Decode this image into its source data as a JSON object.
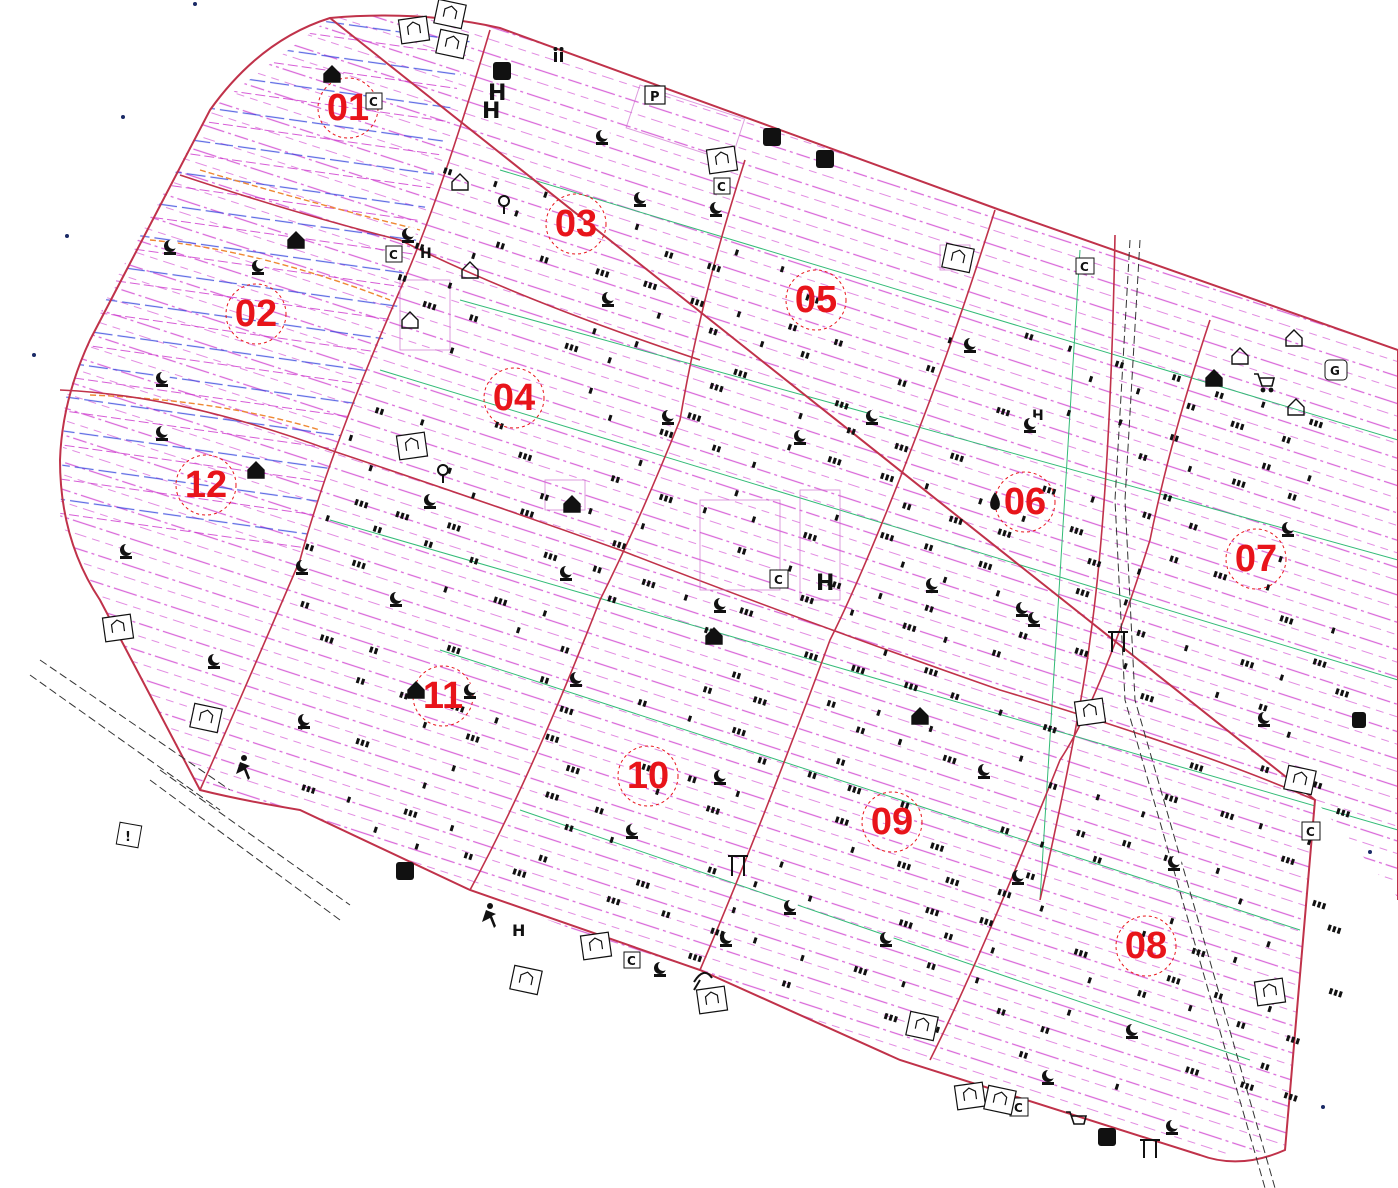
{
  "map": {
    "zones": [
      {
        "id": "01",
        "label": "01"
      },
      {
        "id": "02",
        "label": "02"
      },
      {
        "id": "03",
        "label": "03"
      },
      {
        "id": "04",
        "label": "04"
      },
      {
        "id": "05",
        "label": "05"
      },
      {
        "id": "06",
        "label": "06"
      },
      {
        "id": "07",
        "label": "07"
      },
      {
        "id": "08",
        "label": "08"
      },
      {
        "id": "09",
        "label": "09"
      },
      {
        "id": "10",
        "label": "10"
      },
      {
        "id": "11",
        "label": "11"
      },
      {
        "id": "12",
        "label": "12"
      }
    ],
    "colors": {
      "zone_label": "#e8141a",
      "boundary": "#c0324a",
      "plot_lines": "#cc33cc",
      "utility_blue": "#3344dd",
      "utility_green": "#33bb77",
      "utility_orange": "#ee8833",
      "icons": "#111111",
      "labels_cyan": "#22bbdd"
    },
    "icon_letters": {
      "hospital": "H",
      "parking": "P",
      "clinic": "C",
      "gas": "G"
    }
  }
}
